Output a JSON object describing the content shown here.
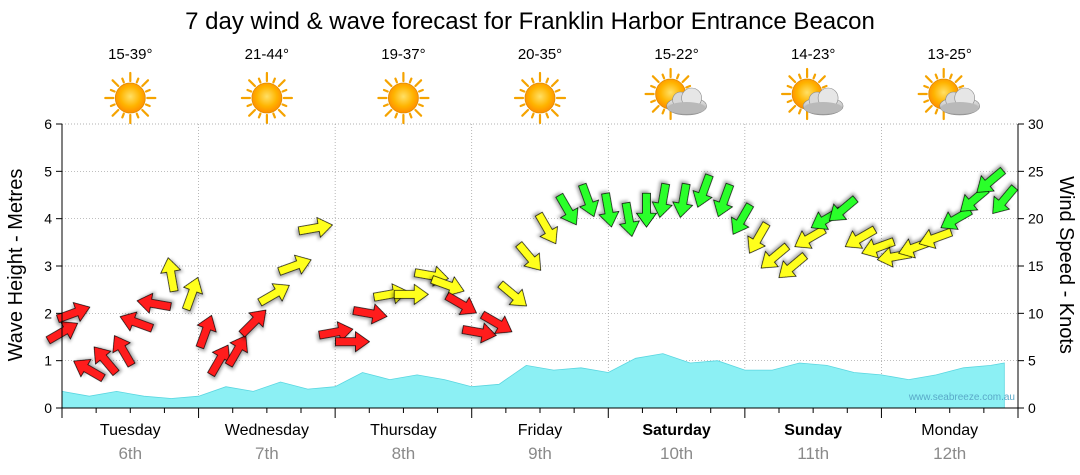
{
  "title": "7 day wind & wave forecast for Franklin Harbor Entrance Beacon",
  "watermark": "www.seabreeze.com.au",
  "colors": {
    "wave_fill": "#8cf0f4",
    "wave_edge": "#5ad6e0",
    "wind_strong": "#ff1a1a",
    "wind_moderate": "#ffff1a",
    "wind_light": "#2bff2b",
    "grid": "#999999",
    "date_text": "#8a8a8a"
  },
  "days": [
    {
      "name": "Tuesday",
      "date": "6th",
      "temp": "15-39°",
      "icon": "sun-icon",
      "bold": false
    },
    {
      "name": "Wednesday",
      "date": "7th",
      "temp": "21-44°",
      "icon": "sun-icon",
      "bold": false
    },
    {
      "name": "Thursday",
      "date": "8th",
      "temp": "19-37°",
      "icon": "sun-icon",
      "bold": false
    },
    {
      "name": "Friday",
      "date": "9th",
      "temp": "20-35°",
      "icon": "sun-icon",
      "bold": false
    },
    {
      "name": "Saturday",
      "date": "10th",
      "temp": "15-22°",
      "icon": "partly-cloudy-icon",
      "bold": true
    },
    {
      "name": "Sunday",
      "date": "11th",
      "temp": "14-23°",
      "icon": "partly-cloudy-icon",
      "bold": true
    },
    {
      "name": "Monday",
      "date": "12th",
      "temp": "13-25°",
      "icon": "partly-cloudy-icon",
      "bold": false
    }
  ],
  "chart_data": {
    "type": "area",
    "title": "7 day wind & wave forecast for Franklin Harbor Entrance Beacon",
    "xlabel": "",
    "ylabel": "Wave Height - Metres",
    "y2label": "Wind Speed - Knots",
    "ylim": [
      0,
      6
    ],
    "y2lim": [
      0,
      30
    ],
    "yticks": [
      "0",
      "1",
      "2",
      "3",
      "4",
      "5",
      "6"
    ],
    "y2ticks": [
      "0",
      "5",
      "10",
      "15",
      "20",
      "25",
      "30"
    ],
    "x_unit": "days since start of Tuesday 6th",
    "xlim": [
      0,
      7
    ],
    "grid": true,
    "wave_height": {
      "x": [
        0,
        0.2,
        0.4,
        0.6,
        0.8,
        1.0,
        1.2,
        1.4,
        1.6,
        1.8,
        2.0,
        2.2,
        2.4,
        2.6,
        2.8,
        3.0,
        3.2,
        3.4,
        3.6,
        3.8,
        4.0,
        4.2,
        4.4,
        4.6,
        4.8,
        5.0,
        5.2,
        5.4,
        5.6,
        5.8,
        6.0,
        6.2,
        6.4,
        6.6,
        6.8,
        6.9
      ],
      "values": [
        0.35,
        0.25,
        0.35,
        0.25,
        0.2,
        0.25,
        0.45,
        0.35,
        0.55,
        0.4,
        0.45,
        0.75,
        0.6,
        0.7,
        0.6,
        0.45,
        0.5,
        0.9,
        0.8,
        0.85,
        0.75,
        1.05,
        1.15,
        0.95,
        1.0,
        0.8,
        0.8,
        0.95,
        0.9,
        0.75,
        0.7,
        0.6,
        0.7,
        0.85,
        0.9,
        0.95
      ]
    },
    "wind": {
      "points": [
        [
          0.0,
          8,
          60
        ],
        [
          0.08,
          10,
          70
        ],
        [
          0.2,
          4,
          300
        ],
        [
          0.32,
          5,
          320
        ],
        [
          0.45,
          6,
          330
        ],
        [
          0.55,
          9,
          290
        ],
        [
          0.68,
          11,
          280
        ],
        [
          0.8,
          14,
          350
        ],
        [
          0.95,
          12,
          20
        ],
        [
          1.05,
          8,
          20
        ],
        [
          1.15,
          5,
          30
        ],
        [
          1.28,
          6,
          30
        ],
        [
          1.4,
          9,
          45
        ],
        [
          1.55,
          12,
          60
        ],
        [
          1.7,
          15,
          70
        ],
        [
          1.85,
          19,
          80
        ],
        [
          2.0,
          8,
          80
        ],
        [
          2.12,
          7,
          90
        ],
        [
          2.25,
          10,
          100
        ],
        [
          2.4,
          12,
          80
        ],
        [
          2.55,
          12,
          90
        ],
        [
          2.7,
          14,
          100
        ],
        [
          2.82,
          13,
          110
        ],
        [
          2.92,
          11,
          120
        ],
        [
          3.05,
          8,
          100
        ],
        [
          3.18,
          9,
          120
        ],
        [
          3.3,
          12,
          130
        ],
        [
          3.42,
          16,
          140
        ],
        [
          3.55,
          19,
          150
        ],
        [
          3.7,
          21,
          150
        ],
        [
          3.85,
          22,
          160
        ],
        [
          4.0,
          21,
          170
        ],
        [
          4.15,
          20,
          170
        ],
        [
          4.28,
          21,
          180
        ],
        [
          4.4,
          22,
          190
        ],
        [
          4.55,
          22,
          190
        ],
        [
          4.7,
          23,
          200
        ],
        [
          4.85,
          22,
          200
        ],
        [
          4.98,
          20,
          210
        ],
        [
          5.1,
          18,
          210
        ],
        [
          5.22,
          16,
          230
        ],
        [
          5.35,
          15,
          230
        ],
        [
          5.48,
          18,
          240
        ],
        [
          5.6,
          20,
          240
        ],
        [
          5.72,
          21,
          230
        ],
        [
          5.85,
          18,
          240
        ],
        [
          5.98,
          17,
          250
        ],
        [
          6.1,
          16,
          260
        ],
        [
          6.25,
          17,
          250
        ],
        [
          6.4,
          18,
          250
        ],
        [
          6.55,
          20,
          240
        ],
        [
          6.68,
          22,
          230
        ],
        [
          6.8,
          24,
          230
        ],
        [
          6.9,
          22,
          220
        ]
      ]
    }
  }
}
